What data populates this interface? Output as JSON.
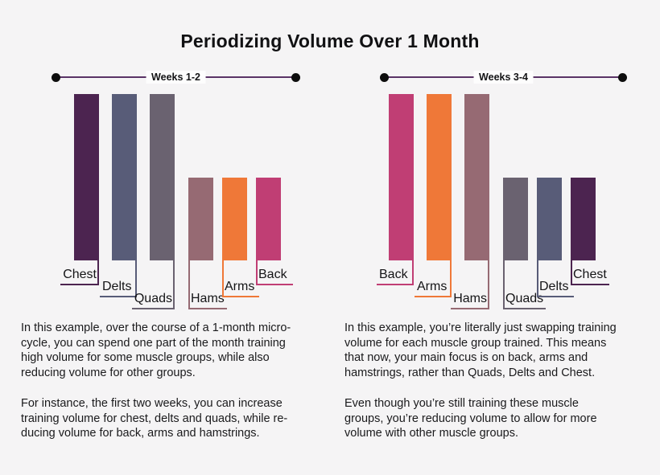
{
  "page": {
    "title": "Periodizing Volume Over 1 Month"
  },
  "panels": [
    {
      "week_label": "Weeks 1-2",
      "paragraphs": [
        "In this example, over the course of a 1-month micro-\ncycle, you can spend one part of the month training\nhigh volume for some muscle groups, while also\nreducing volume for other groups.",
        "For instance, the first two weeks, you can increase\ntraining volume for chest, delts and quads, while re-\nducing volume for back, arms and hamstrings."
      ]
    },
    {
      "week_label": "Weeks 3-4",
      "paragraphs": [
        "In this example, you’re literally just swapping training\nvolume for each muscle group trained. This means\nthat now, your main focus is on back, arms and\nhamstrings, rather than Quads, Delts and Chest.",
        "Even though you’re still training these muscle\ngroups, you’re reducing volume to allow for more\nvolume with other muscle groups."
      ]
    }
  ],
  "colors": {
    "background": "#f5f4f5",
    "timeline_line": "#5a3366",
    "timeline_dot": "#0d0d0d",
    "text": "#1a1a1c",
    "chest": "#4c2450",
    "delts": "#585c78",
    "quads": "#6a6270",
    "hams": "#966a73",
    "arms": "#ef7838",
    "back": "#c03e74"
  },
  "chart_data": [
    {
      "type": "bar",
      "title": "Weeks 1-2",
      "categories": [
        "Chest",
        "Delts",
        "Quads",
        "Hams",
        "Arms",
        "Back"
      ],
      "values": [
        100,
        100,
        100,
        50,
        50,
        50
      ],
      "value_scale": "relative training volume (high = 100, low = 50)",
      "colors": [
        "#4c2450",
        "#585c78",
        "#6a6270",
        "#966a73",
        "#ef7838",
        "#c03e74"
      ],
      "legend": "none",
      "axes": "none — bars labeled by colored callout lines"
    },
    {
      "type": "bar",
      "title": "Weeks 3-4",
      "categories": [
        "Back",
        "Arms",
        "Hams",
        "Quads",
        "Delts",
        "Chest"
      ],
      "values": [
        100,
        100,
        100,
        50,
        50,
        50
      ],
      "value_scale": "relative training volume (high = 100, low = 50)",
      "colors": [
        "#c03e74",
        "#ef7838",
        "#966a73",
        "#6a6270",
        "#585c78",
        "#4c2450"
      ],
      "legend": "none",
      "axes": "none — bars labeled by colored callout lines"
    }
  ]
}
